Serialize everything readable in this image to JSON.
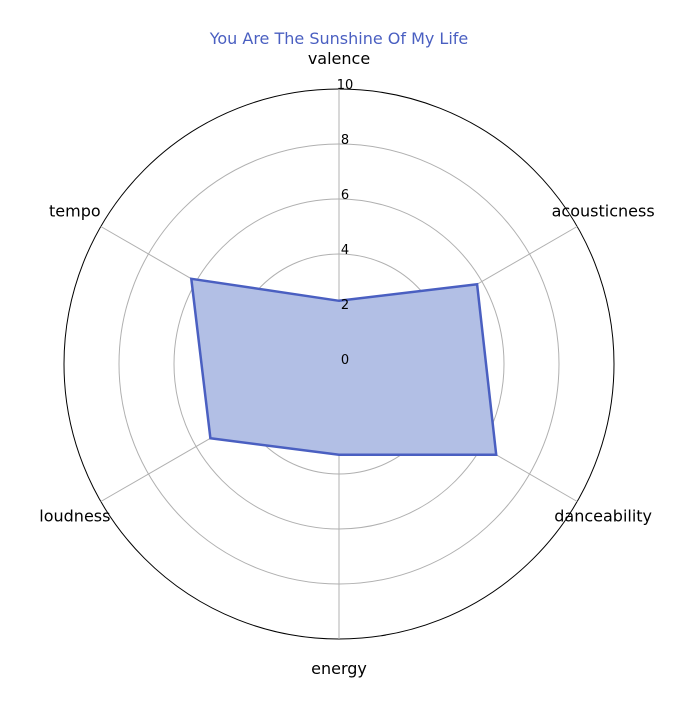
{
  "chart_data": {
    "type": "radar",
    "title": "You Are The Sunshine Of My Life",
    "axes": [
      "valence",
      "acousticness",
      "danceability",
      "energy",
      "loudness",
      "tempo"
    ],
    "series": [
      {
        "values": [
          2.3,
          5.8,
          6.6,
          3.3,
          5.4,
          6.2
        ]
      }
    ],
    "rlim": [
      0,
      10
    ],
    "rticks": [
      "0",
      "2",
      "4",
      "6",
      "8",
      "10"
    ],
    "grid": true,
    "colors": {
      "line": "#4a5fc1",
      "fill": "#b2bfe5",
      "grid": "#b0b0b0",
      "frame": "#000000"
    }
  }
}
